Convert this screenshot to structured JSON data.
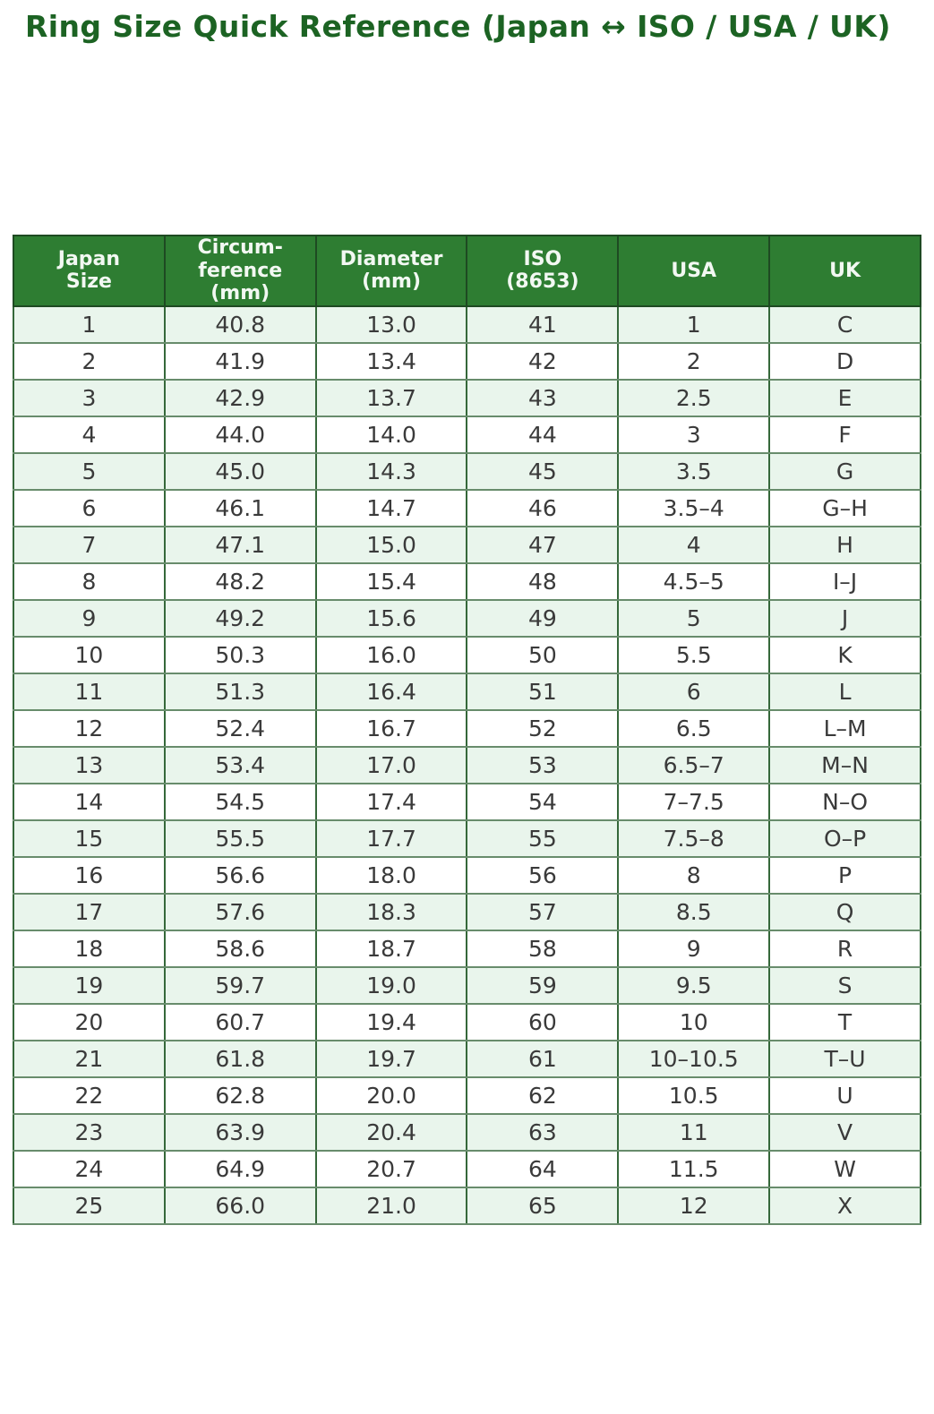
{
  "page": {
    "title": "Ring Size Quick Reference (Japan ↔ ISO / USA / UK)"
  },
  "colors": {
    "title_text": "#1c6323",
    "header_bg": "#2e7d32",
    "header_text": "#f2f8f2",
    "row_alt_bg": "#e9f5ec",
    "row_bg": "#ffffff",
    "row_border": "#688c6c",
    "column_border": "#35683a",
    "body_text": "#3a3a3a"
  },
  "chart_data": {
    "type": "table",
    "title": "Ring Size Quick Reference (Japan ↔ ISO / USA / UK)",
    "columns": [
      "Japan\nSize",
      "Circum-\nference\n(mm)",
      "Diameter\n(mm)",
      "ISO\n(8653)",
      "USA",
      "UK"
    ],
    "rows": [
      [
        "1",
        "40.8",
        "13.0",
        "41",
        "1",
        "C"
      ],
      [
        "2",
        "41.9",
        "13.4",
        "42",
        "2",
        "D"
      ],
      [
        "3",
        "42.9",
        "13.7",
        "43",
        "2.5",
        "E"
      ],
      [
        "4",
        "44.0",
        "14.0",
        "44",
        "3",
        "F"
      ],
      [
        "5",
        "45.0",
        "14.3",
        "45",
        "3.5",
        "G"
      ],
      [
        "6",
        "46.1",
        "14.7",
        "46",
        "3.5–4",
        "G–H"
      ],
      [
        "7",
        "47.1",
        "15.0",
        "47",
        "4",
        "H"
      ],
      [
        "8",
        "48.2",
        "15.4",
        "48",
        "4.5–5",
        "I–J"
      ],
      [
        "9",
        "49.2",
        "15.6",
        "49",
        "5",
        "J"
      ],
      [
        "10",
        "50.3",
        "16.0",
        "50",
        "5.5",
        "K"
      ],
      [
        "11",
        "51.3",
        "16.4",
        "51",
        "6",
        "L"
      ],
      [
        "12",
        "52.4",
        "16.7",
        "52",
        "6.5",
        "L–M"
      ],
      [
        "13",
        "53.4",
        "17.0",
        "53",
        "6.5–7",
        "M–N"
      ],
      [
        "14",
        "54.5",
        "17.4",
        "54",
        "7–7.5",
        "N–O"
      ],
      [
        "15",
        "55.5",
        "17.7",
        "55",
        "7.5–8",
        "O–P"
      ],
      [
        "16",
        "56.6",
        "18.0",
        "56",
        "8",
        "P"
      ],
      [
        "17",
        "57.6",
        "18.3",
        "57",
        "8.5",
        "Q"
      ],
      [
        "18",
        "58.6",
        "18.7",
        "58",
        "9",
        "R"
      ],
      [
        "19",
        "59.7",
        "19.0",
        "59",
        "9.5",
        "S"
      ],
      [
        "20",
        "60.7",
        "19.4",
        "60",
        "10",
        "T"
      ],
      [
        "21",
        "61.8",
        "19.7",
        "61",
        "10–10.5",
        "T–U"
      ],
      [
        "22",
        "62.8",
        "20.0",
        "62",
        "10.5",
        "U"
      ],
      [
        "23",
        "63.9",
        "20.4",
        "63",
        "11",
        "V"
      ],
      [
        "24",
        "64.9",
        "20.7",
        "64",
        "11.5",
        "W"
      ],
      [
        "25",
        "66.0",
        "21.0",
        "65",
        "12",
        "X"
      ]
    ]
  }
}
